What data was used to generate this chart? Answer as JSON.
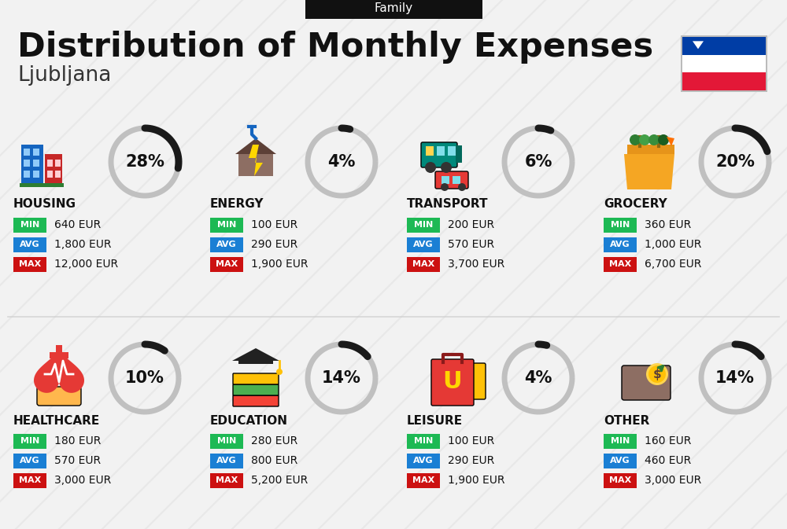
{
  "title": "Distribution of Monthly Expenses",
  "subtitle": "Ljubljana",
  "category_label": "Family",
  "bg_color": "#f2f2f2",
  "categories": [
    {
      "name": "HOUSING",
      "pct": 28,
      "min": "640 EUR",
      "avg": "1,800 EUR",
      "max": "12,000 EUR"
    },
    {
      "name": "ENERGY",
      "pct": 4,
      "min": "100 EUR",
      "avg": "290 EUR",
      "max": "1,900 EUR"
    },
    {
      "name": "TRANSPORT",
      "pct": 6,
      "min": "200 EUR",
      "avg": "570 EUR",
      "max": "3,700 EUR"
    },
    {
      "name": "GROCERY",
      "pct": 20,
      "min": "360 EUR",
      "avg": "1,000 EUR",
      "max": "6,700 EUR"
    },
    {
      "name": "HEALTHCARE",
      "pct": 10,
      "min": "180 EUR",
      "avg": "570 EUR",
      "max": "3,000 EUR"
    },
    {
      "name": "EDUCATION",
      "pct": 14,
      "min": "280 EUR",
      "avg": "800 EUR",
      "max": "5,200 EUR"
    },
    {
      "name": "LEISURE",
      "pct": 4,
      "min": "100 EUR",
      "avg": "290 EUR",
      "max": "1,900 EUR"
    },
    {
      "name": "OTHER",
      "pct": 14,
      "min": "160 EUR",
      "avg": "460 EUR",
      "max": "3,000 EUR"
    }
  ],
  "min_color": "#1db954",
  "avg_color": "#1a7fd4",
  "max_color": "#cc1111",
  "arc_filled_color": "#1a1a1a",
  "arc_empty_color": "#c0c0c0",
  "stripe_color": "#e0e0e0",
  "header_bg": "#111111",
  "text_dark": "#111111"
}
